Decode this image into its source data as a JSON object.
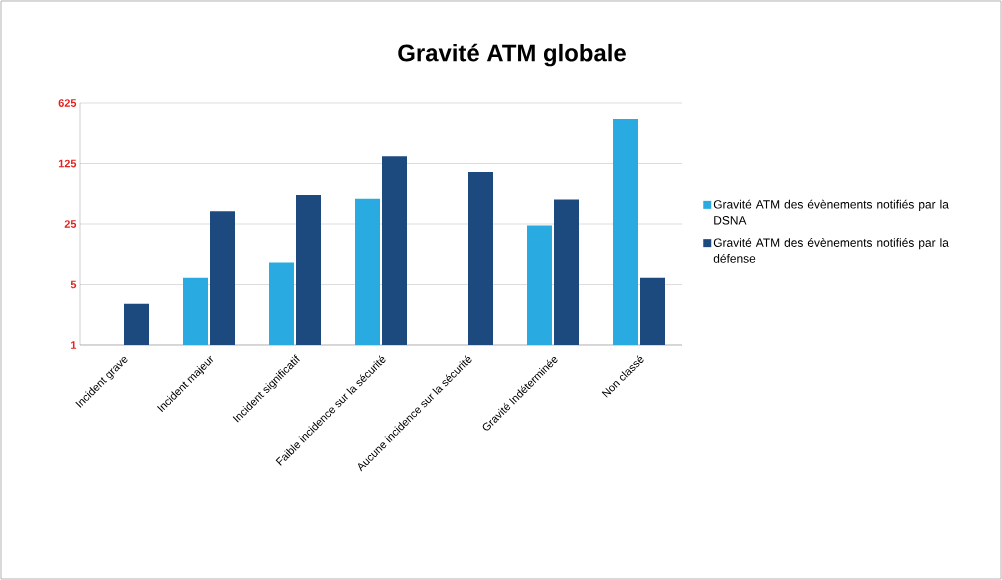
{
  "chart_data": {
    "type": "bar",
    "title": "Gravité ATM globale",
    "categories": [
      "Incident grave",
      "Incident majeur",
      "Incident significatif",
      "Faible incidence sur la sécurité",
      "Aucune incidence sur la sécurité",
      "Gravité Indéterminée",
      "Non classé"
    ],
    "series": [
      {
        "name": "Gravité  ATM des évènements notifiés par la DSNA",
        "color": "#29abe2",
        "values": [
          null,
          6,
          9,
          49,
          null,
          24,
          409
        ]
      },
      {
        "name": "Gravité  ATM des évènements notifiés par la défense",
        "color": "#1c4a7e",
        "values": [
          3,
          35,
          54,
          152,
          100,
          48,
          6
        ]
      }
    ],
    "log": true,
    "ylim": [
      1,
      625
    ],
    "yticks": [
      1,
      5,
      25,
      125,
      625
    ],
    "grid": "y",
    "legend": "right"
  }
}
